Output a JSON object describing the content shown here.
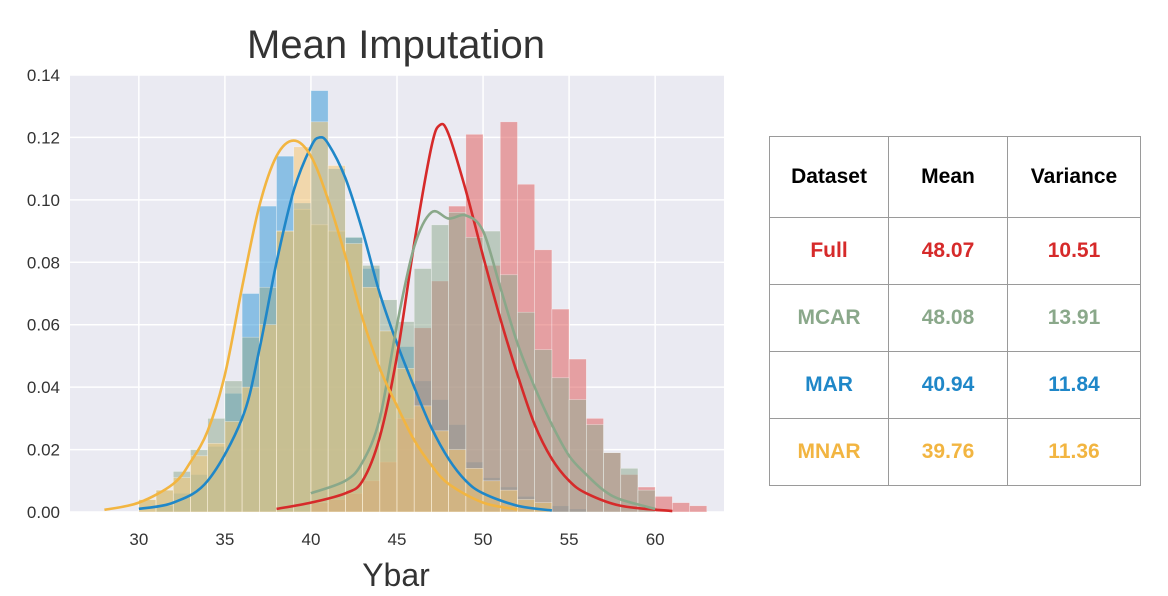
{
  "chart_data": {
    "type": "histogram",
    "title": "Mean Imputation",
    "xlabel": "Ybar",
    "ylabel": "",
    "xlim": [
      26,
      64
    ],
    "ylim": [
      0,
      0.14
    ],
    "xticks": [
      30,
      35,
      40,
      45,
      50,
      55,
      60
    ],
    "yticks": [
      "0.00",
      "0.02",
      "0.04",
      "0.06",
      "0.08",
      "0.10",
      "0.12",
      "0.14"
    ],
    "grid": true,
    "bin_width": 1,
    "series": [
      {
        "color": "#3a9bd9",
        "kde_color": "#1f87c8",
        "bin_start": 31,
        "bin_heights": [
          0.002,
          0.006,
          0.012,
          0.021,
          0.038,
          0.07,
          0.098,
          0.114,
          0.099,
          0.135,
          0.11,
          0.088,
          0.078,
          0.058,
          0.053,
          0.042,
          0.036,
          0.028,
          0.016,
          0.011,
          0.008,
          0.005,
          0.003,
          0.002,
          0.001
        ],
        "kde": [
          [
            30,
            0.001
          ],
          [
            32,
            0.003
          ],
          [
            34,
            0.01
          ],
          [
            36,
            0.03
          ],
          [
            37,
            0.052
          ],
          [
            38,
            0.08
          ],
          [
            39,
            0.103
          ],
          [
            40,
            0.117
          ],
          [
            40.5,
            0.12
          ],
          [
            41,
            0.118
          ],
          [
            42,
            0.107
          ],
          [
            43,
            0.09
          ],
          [
            44,
            0.07
          ],
          [
            45,
            0.054
          ],
          [
            46,
            0.04
          ],
          [
            47,
            0.027
          ],
          [
            48,
            0.017
          ],
          [
            49,
            0.01
          ],
          [
            50,
            0.006
          ],
          [
            52,
            0.002
          ],
          [
            54,
            0.0005
          ]
        ]
      },
      {
        "color": "#e06060",
        "kde_color": "#d62a2a",
        "bin_start": 40,
        "bin_heights": [
          0.003,
          0.004,
          0.006,
          0.01,
          0.016,
          0.03,
          0.059,
          0.074,
          0.098,
          0.121,
          0.079,
          0.125,
          0.105,
          0.084,
          0.065,
          0.049,
          0.03,
          0.019,
          0.012,
          0.008,
          0.005,
          0.003,
          0.002
        ],
        "kde": [
          [
            38,
            0.001
          ],
          [
            40,
            0.003
          ],
          [
            42,
            0.006
          ],
          [
            43,
            0.01
          ],
          [
            44,
            0.024
          ],
          [
            45,
            0.05
          ],
          [
            46,
            0.086
          ],
          [
            47,
            0.117
          ],
          [
            47.5,
            0.124
          ],
          [
            48,
            0.121
          ],
          [
            49,
            0.103
          ],
          [
            50,
            0.082
          ],
          [
            51,
            0.062
          ],
          [
            52,
            0.044
          ],
          [
            53,
            0.028
          ],
          [
            54,
            0.017
          ],
          [
            55,
            0.01
          ],
          [
            56,
            0.006
          ],
          [
            58,
            0.002
          ],
          [
            61,
            0.0003
          ]
        ]
      },
      {
        "color": "#93ad93",
        "kde_color": "#8aa88a",
        "bin_start": 30,
        "bin_heights": [
          0.004,
          0.007,
          0.013,
          0.02,
          0.03,
          0.042,
          0.056,
          0.072,
          0.09,
          0.097,
          0.092,
          0.09,
          0.088,
          0.079,
          0.068,
          0.061,
          0.078,
          0.092,
          0.096,
          0.088,
          0.09,
          0.076,
          0.064,
          0.052,
          0.043,
          0.036,
          0.028,
          0.019,
          0.014,
          0.007
        ],
        "kde": [
          [
            40,
            0.006
          ],
          [
            42,
            0.01
          ],
          [
            43,
            0.016
          ],
          [
            44,
            0.03
          ],
          [
            45,
            0.06
          ],
          [
            46,
            0.085
          ],
          [
            47,
            0.096
          ],
          [
            48,
            0.094
          ],
          [
            49,
            0.095
          ],
          [
            50,
            0.09
          ],
          [
            51,
            0.072
          ],
          [
            52,
            0.054
          ],
          [
            53,
            0.04
          ],
          [
            54,
            0.028
          ],
          [
            55,
            0.018
          ],
          [
            56,
            0.012
          ],
          [
            57,
            0.007
          ],
          [
            58,
            0.004
          ],
          [
            60,
            0.001
          ]
        ]
      },
      {
        "color": "#f5c672",
        "kde_color": "#f2b541",
        "bin_start": 30,
        "bin_heights": [
          0.004,
          0.007,
          0.011,
          0.018,
          0.022,
          0.029,
          0.04,
          0.06,
          0.09,
          0.117,
          0.125,
          0.111,
          0.086,
          0.072,
          0.058,
          0.046,
          0.034,
          0.026,
          0.02,
          0.014,
          0.01,
          0.007,
          0.004,
          0.003
        ],
        "kde": [
          [
            28,
            0.0007
          ],
          [
            30,
            0.003
          ],
          [
            32,
            0.009
          ],
          [
            33,
            0.016
          ],
          [
            34,
            0.026
          ],
          [
            35,
            0.044
          ],
          [
            36,
            0.072
          ],
          [
            37,
            0.098
          ],
          [
            38,
            0.114
          ],
          [
            39,
            0.119
          ],
          [
            40,
            0.114
          ],
          [
            41,
            0.1
          ],
          [
            42,
            0.082
          ],
          [
            43,
            0.062
          ],
          [
            44,
            0.046
          ],
          [
            45,
            0.034
          ],
          [
            46,
            0.023
          ],
          [
            47,
            0.015
          ],
          [
            48,
            0.009
          ],
          [
            50,
            0.003
          ],
          [
            52,
            0.0008
          ]
        ]
      }
    ]
  },
  "table": {
    "headers": [
      "Dataset",
      "Mean",
      "Variance"
    ],
    "rows": [
      {
        "dataset": "Full",
        "mean": "48.07",
        "variance": "10.51",
        "color": "#d62a2a"
      },
      {
        "dataset": "MCAR",
        "mean": "48.08",
        "variance": "13.91",
        "color": "#8aa88a"
      },
      {
        "dataset": "MAR",
        "mean": "40.94",
        "variance": "11.84",
        "color": "#1f87c8"
      },
      {
        "dataset": "MNAR",
        "mean": "39.76",
        "variance": "11.36",
        "color": "#f2b541"
      }
    ]
  }
}
